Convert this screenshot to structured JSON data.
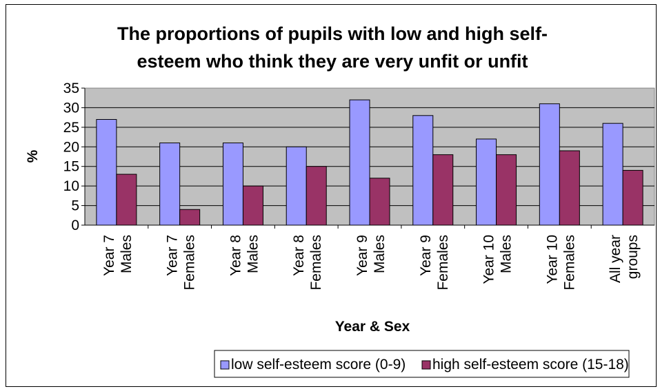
{
  "chart_data": {
    "type": "bar",
    "title_lines": [
      "The proportions of pupils with low and high self-",
      "esteem who think they are very unfit or unfit"
    ],
    "xlabel": "Year & Sex",
    "ylabel": "%",
    "ylim": [
      0,
      35
    ],
    "yticks": [
      "0",
      "5",
      "10",
      "15",
      "20",
      "25",
      "30",
      "35"
    ],
    "grid": true,
    "legend_position": "bottom",
    "categories": [
      [
        "Year 7",
        "Males"
      ],
      [
        "Year 7",
        "Females"
      ],
      [
        "Year 8",
        "Males"
      ],
      [
        "Year 8",
        "Females"
      ],
      [
        "Year 9",
        "Males"
      ],
      [
        "Year 9",
        "Females"
      ],
      [
        "Year 10",
        "Males"
      ],
      [
        "Year 10",
        "Females"
      ],
      [
        "All year",
        "groups"
      ]
    ],
    "series": [
      {
        "name": "low self-esteem score (0-9)",
        "color": "#9999ff",
        "values": [
          27,
          21,
          21,
          20,
          32,
          28,
          22,
          31,
          26
        ]
      },
      {
        "name": "high self-esteem score (15-18)",
        "color": "#993366",
        "values": [
          13,
          4,
          10,
          15,
          12,
          18,
          18,
          19,
          14
        ]
      }
    ],
    "plot_background": "#c0c0c0"
  }
}
